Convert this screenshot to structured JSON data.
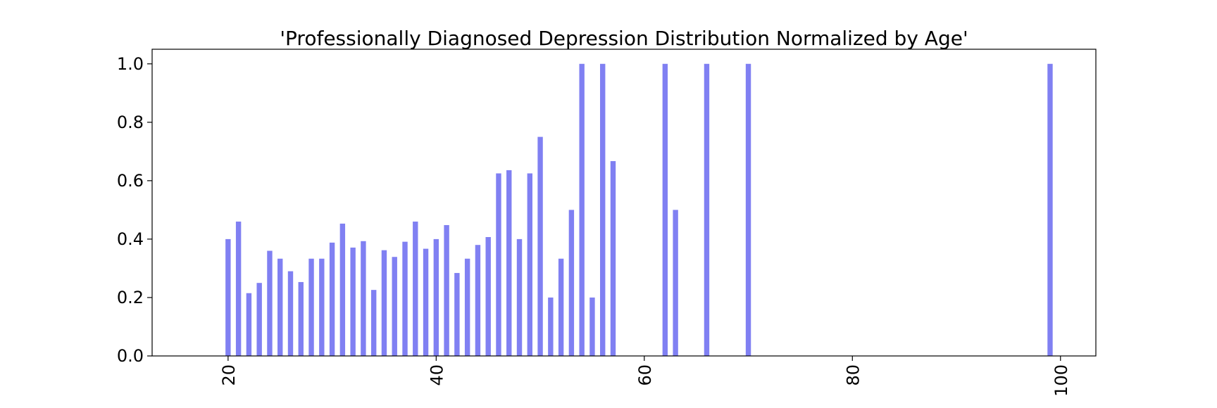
{
  "chart_data": {
    "type": "bar",
    "title": "'Professionally Diagnosed Depression Distribution Normalized by Age'",
    "xlabel": "",
    "ylabel": "",
    "bar_color": "#8080f2",
    "xlim": [
      12.7,
      103.4
    ],
    "ylim": [
      0.0,
      1.05
    ],
    "x_ticks": [
      20,
      40,
      60,
      80,
      100
    ],
    "y_ticks": [
      0.0,
      0.2,
      0.4,
      0.6,
      0.8,
      1.0
    ],
    "y_tick_labels": [
      "0.0",
      "0.2",
      "0.4",
      "0.6",
      "0.8",
      "1.0"
    ],
    "grid": false,
    "legend": false,
    "x": [
      20,
      21,
      22,
      23,
      24,
      25,
      26,
      27,
      28,
      29,
      30,
      31,
      32,
      33,
      34,
      35,
      36,
      37,
      38,
      39,
      40,
      41,
      42,
      43,
      44,
      45,
      46,
      47,
      48,
      49,
      50,
      51,
      52,
      53,
      54,
      55,
      56,
      57,
      62,
      63,
      66,
      70,
      99
    ],
    "values": [
      0.4,
      0.46,
      0.215,
      0.25,
      0.36,
      0.333,
      0.29,
      0.253,
      0.333,
      0.333,
      0.388,
      0.453,
      0.371,
      0.393,
      0.226,
      0.362,
      0.339,
      0.391,
      0.46,
      0.367,
      0.4,
      0.448,
      0.284,
      0.333,
      0.38,
      0.407,
      0.625,
      0.636,
      0.4,
      0.625,
      0.75,
      0.2,
      0.333,
      0.5,
      1.0,
      0.2,
      1.0,
      0.667,
      1.0,
      0.5,
      1.0,
      1.0,
      1.0
    ]
  }
}
